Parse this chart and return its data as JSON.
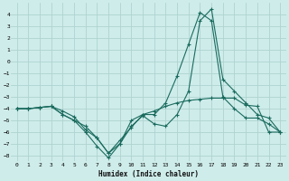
{
  "xlabel": "Humidex (Indice chaleur)",
  "ylabel": "",
  "background_color": "#ceecea",
  "grid_color": "#aed4d0",
  "line_color": "#1a6b5e",
  "xlim": [
    -0.5,
    23.5
  ],
  "ylim": [
    -8.5,
    5.0
  ],
  "xticks": [
    0,
    1,
    2,
    3,
    4,
    5,
    6,
    7,
    8,
    9,
    10,
    11,
    12,
    13,
    14,
    15,
    16,
    17,
    18,
    19,
    20,
    21,
    22,
    23
  ],
  "yticks": [
    -8,
    -7,
    -6,
    -5,
    -4,
    -3,
    -2,
    -1,
    0,
    1,
    2,
    3,
    4
  ],
  "line1_x": [
    0,
    1,
    2,
    3,
    4,
    5,
    6,
    7,
    8,
    9,
    10,
    11,
    12,
    13,
    14,
    15,
    16,
    17,
    18,
    19,
    20,
    21,
    22,
    23
  ],
  "line1_y": [
    -4.0,
    -4.0,
    -3.9,
    -3.8,
    -4.2,
    -4.7,
    -5.8,
    -6.5,
    -7.8,
    -6.7,
    -5.6,
    -4.5,
    -4.2,
    -3.8,
    -3.5,
    -3.3,
    -3.2,
    -3.1,
    -3.1,
    -3.1,
    -3.7,
    -3.8,
    -6.0,
    -6.0
  ],
  "line2_x": [
    0,
    1,
    2,
    3,
    4,
    5,
    6,
    7,
    8,
    9,
    10,
    11,
    12,
    13,
    14,
    15,
    16,
    17,
    18,
    19,
    20,
    21,
    22,
    23
  ],
  "line2_y": [
    -4.0,
    -4.0,
    -3.9,
    -3.8,
    -4.5,
    -5.0,
    -6.0,
    -7.2,
    -8.2,
    -7.0,
    -5.5,
    -4.6,
    -5.3,
    -5.5,
    -4.5,
    -2.5,
    3.5,
    4.5,
    -1.5,
    -2.5,
    -3.5,
    -4.5,
    -4.8,
    -6.0
  ],
  "line3_x": [
    0,
    1,
    2,
    3,
    4,
    5,
    6,
    7,
    8,
    9,
    10,
    11,
    12,
    13,
    14,
    15,
    16,
    17,
    18,
    19,
    20,
    21,
    22,
    23
  ],
  "line3_y": [
    -4.0,
    -4.0,
    -3.9,
    -3.8,
    -4.5,
    -5.0,
    -5.5,
    -6.5,
    -7.8,
    -7.0,
    -5.0,
    -4.5,
    -4.5,
    -3.5,
    -1.2,
    1.5,
    4.2,
    3.5,
    -3.0,
    -4.0,
    -4.8,
    -4.8,
    -5.3,
    -6.0
  ]
}
